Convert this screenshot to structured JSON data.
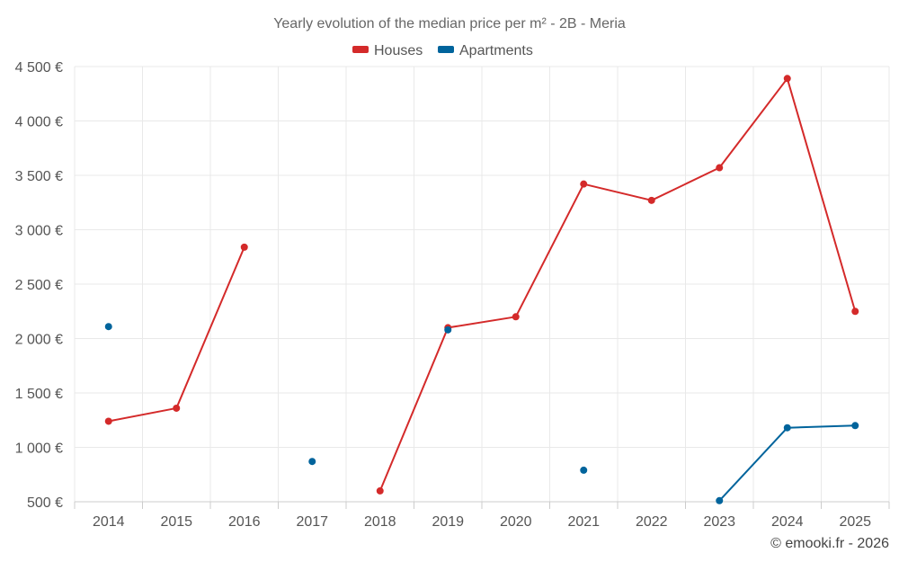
{
  "chart_data": {
    "type": "line",
    "title": "Yearly evolution of the median price per m² - 2B - Meria",
    "categories": [
      "2014",
      "2015",
      "2016",
      "2017",
      "2018",
      "2019",
      "2020",
      "2021",
      "2022",
      "2023",
      "2024",
      "2025"
    ],
    "y_ticks": [
      "500 €",
      "1 000 €",
      "1 500 €",
      "2 000 €",
      "2 500 €",
      "3 000 €",
      "3 500 €",
      "4 000 €",
      "4 500 €"
    ],
    "ylim": [
      500,
      4500
    ],
    "grid": true,
    "legend_position": "top-center",
    "series": [
      {
        "name": "Houses",
        "color": "#d42a2a",
        "values": [
          1240,
          1360,
          2840,
          null,
          600,
          2100,
          2200,
          3420,
          3270,
          3570,
          4390,
          2250
        ]
      },
      {
        "name": "Apartments",
        "color": "#00649c",
        "values": [
          2110,
          null,
          null,
          870,
          null,
          2080,
          null,
          790,
          null,
          510,
          1180,
          1200
        ]
      }
    ],
    "credit": "© emooki.fr - 2026"
  }
}
